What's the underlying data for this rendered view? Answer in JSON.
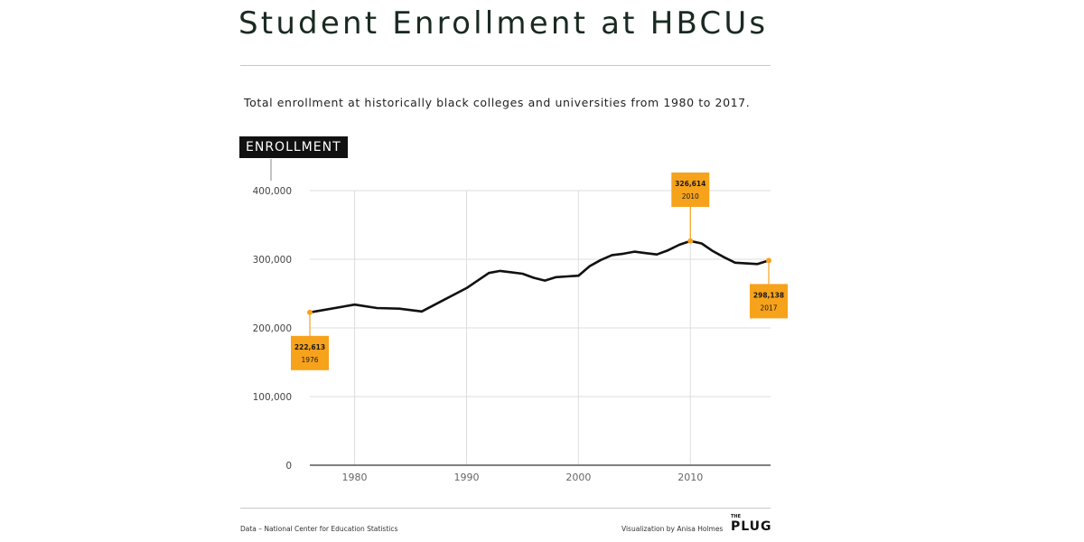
{
  "header": {
    "title": "Student Enrollment at HBCUs",
    "subtitle": "Total enrollment at historically black colleges and universities from 1980 to 2017.",
    "y_axis_badge": "ENROLLMENT"
  },
  "footer": {
    "source": "Data – National Center for Education Statistics",
    "credit": "Visualization by Anisa Holmes",
    "brand_small": "THE",
    "brand_big": "PLUG"
  },
  "colors": {
    "line": "#111111",
    "accent": "#f7a21b",
    "grid": "#dddddd",
    "axis": "#555555",
    "badge_bg": "#111111",
    "title": "#1a2a22"
  },
  "chart_data": {
    "type": "line",
    "title": "Student Enrollment at HBCUs",
    "subtitle": "Total enrollment at historically black colleges and universities from 1980 to 2017.",
    "ylabel": "ENROLLMENT",
    "xlabel": "",
    "xlim": [
      1976,
      2017
    ],
    "ylim": [
      0,
      400000
    ],
    "x_ticks": [
      1980,
      1990,
      2000,
      2010
    ],
    "x_tick_labels": [
      "1980",
      "1990",
      "2000",
      "2010"
    ],
    "y_ticks": [
      0,
      100000,
      200000,
      300000,
      400000
    ],
    "y_tick_labels": [
      "0",
      "100,000",
      "200,000",
      "300,000",
      "400,000"
    ],
    "grid": true,
    "series": [
      {
        "x": [
          1976,
          1980,
          1982,
          1984,
          1986,
          1988,
          1990,
          1992,
          1993,
          1994,
          1995,
          1996,
          1997,
          1998,
          1999,
          2000,
          2001,
          2002,
          2003,
          2004,
          2005,
          2006,
          2007,
          2008,
          2009,
          2010,
          2011,
          2012,
          2013,
          2014,
          2015,
          2016,
          2017
        ],
        "y": [
          222613,
          234000,
          229000,
          228000,
          224000,
          241000,
          258000,
          280000,
          283000,
          281000,
          279000,
          273000,
          269000,
          274000,
          275000,
          276000,
          290000,
          299000,
          306000,
          308000,
          311000,
          309000,
          307000,
          313000,
          321000,
          326614,
          323000,
          312000,
          303000,
          295000,
          294000,
          293000,
          298138
        ]
      }
    ],
    "annotations": [
      {
        "x": 1976,
        "y": 222613,
        "value_label": "222,613",
        "year_label": "1976",
        "position": "below"
      },
      {
        "x": 2010,
        "y": 326614,
        "value_label": "326,614",
        "year_label": "2010",
        "position": "above"
      },
      {
        "x": 2017,
        "y": 298138,
        "value_label": "298,138",
        "year_label": "2017",
        "position": "below"
      }
    ]
  }
}
